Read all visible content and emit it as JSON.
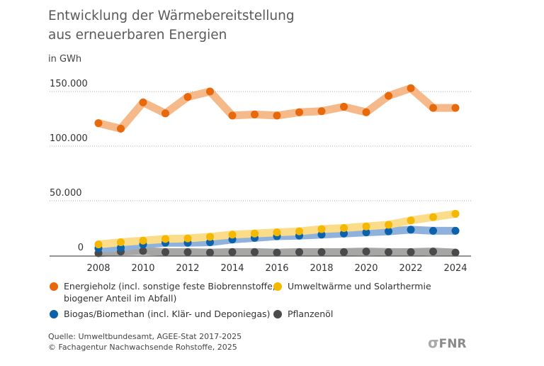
{
  "title_line1": "Entwicklung der Wärmebereitstellung",
  "title_line2": "aus erneuerbaren Energien",
  "unit": "in GWh",
  "chart_data": {
    "type": "line",
    "title": "Entwicklung der Wärmebereitstellung aus erneuerbaren Energien",
    "ylabel": "in GWh",
    "ylim": [
      0,
      150000
    ],
    "yticks": [
      0,
      50000,
      100000,
      150000
    ],
    "ytick_labels": [
      "0",
      "50.000",
      "100.000",
      "150.000"
    ],
    "x": [
      2008,
      2009,
      2010,
      2011,
      2012,
      2013,
      2014,
      2015,
      2016,
      2017,
      2018,
      2019,
      2020,
      2021,
      2022,
      2023,
      2024
    ],
    "xtick_labels": [
      "2008",
      "2010",
      "2012",
      "2014",
      "2016",
      "2018",
      "2020",
      "2022",
      "2024"
    ],
    "grid": true,
    "legend_position": "bottom",
    "series": [
      {
        "name": "Energieholz (incl. sonstige feste Biobrennstoffe, biogener Anteil im Abfall)",
        "color": "#e8690c",
        "band": "#f5b98a",
        "values": [
          121000,
          116000,
          140000,
          130000,
          145000,
          150000,
          128000,
          129000,
          128000,
          131000,
          132000,
          136000,
          131000,
          146000,
          153000,
          135000,
          135000
        ]
      },
      {
        "name": "Umweltwärme und Solarthermie",
        "color": "#f5b800",
        "band": "#fbdc88",
        "values": [
          10000,
          12000,
          13500,
          15000,
          15500,
          17000,
          19000,
          20000,
          21000,
          22000,
          24000,
          25000,
          26500,
          28000,
          32000,
          35000,
          38000
        ]
      },
      {
        "name": "Biogas/Biomethan (incl. Klär- und Deponiegas)",
        "color": "#0b62aa",
        "band": "#8fb2dc",
        "values": [
          6500,
          7000,
          10000,
          11500,
          11500,
          12000,
          14500,
          16000,
          17500,
          18000,
          19000,
          20000,
          21000,
          22000,
          23500,
          22500,
          22500
        ]
      },
      {
        "name": "Pflanzenöl",
        "color": "#4a4a4a",
        "band": "#a6a6a4",
        "values": [
          2000,
          3500,
          4000,
          3000,
          3000,
          2500,
          3000,
          3000,
          2500,
          3000,
          3000,
          3000,
          3500,
          3000,
          3000,
          3500,
          2500
        ]
      }
    ]
  },
  "legend": [
    {
      "line1": "Energieholz (incl. sonstige feste Biobrennstoffe,",
      "line2": "biogener Anteil im Abfall)"
    },
    {
      "line1": "Umweltwärme und Solarthermie"
    },
    {
      "line1": "Biogas/Biomethan (incl. Klär- und Deponiegas)"
    },
    {
      "line1": "Pflanzenöl"
    }
  ],
  "source_line1": "Quelle: Umweltbundesamt, AGEE-Stat 2017-2025",
  "source_line2": "© Fachagentur Nachwachsende Rohstoffe, 2025",
  "logo_text": "FNR"
}
